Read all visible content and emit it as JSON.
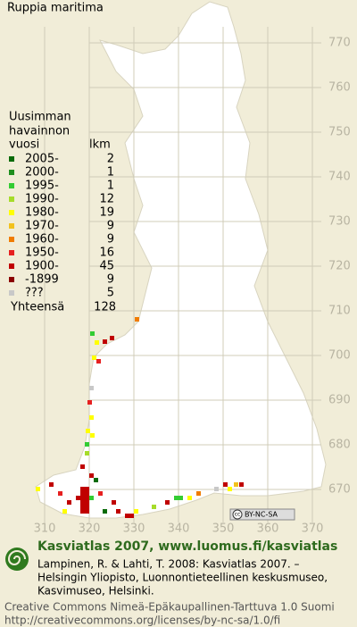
{
  "title": "Ruppia maritima",
  "legend": {
    "heading": [
      "Uusimman",
      "havainnon",
      "vuosi"
    ],
    "count_heading": "lkm",
    "rows": [
      {
        "label": "2005-",
        "count": 2,
        "color": "#0a6b0a"
      },
      {
        "label": "2000-",
        "count": 1,
        "color": "#1f8f1f"
      },
      {
        "label": "1995-",
        "count": 1,
        "color": "#33cc33"
      },
      {
        "label": "1990-",
        "count": 12,
        "color": "#a6dc2a"
      },
      {
        "label": "1980-",
        "count": 19,
        "color": "#ffff00"
      },
      {
        "label": "1970-",
        "count": 9,
        "color": "#f2c21e"
      },
      {
        "label": "1960-",
        "count": 9,
        "color": "#f07c00"
      },
      {
        "label": "1950-",
        "count": 16,
        "color": "#e62020"
      },
      {
        "label": "1900-",
        "count": 45,
        "color": "#c00000"
      },
      {
        "label": "-1899",
        "count": 9,
        "color": "#8b0000"
      },
      {
        "label": "???",
        "count": 5,
        "color": "#c8c8c8"
      }
    ],
    "total_label": "Yhteensä",
    "total": 128
  },
  "grid": {
    "y_labels": [
      770,
      760,
      750,
      740,
      730,
      720,
      710,
      700,
      690,
      680,
      670
    ],
    "x_labels": [
      310,
      320,
      330,
      340,
      350,
      360,
      370
    ]
  },
  "badge": {
    "symbol": "cc",
    "text": "BY-NC-SA"
  },
  "footer": {
    "site": "Kasviatlas 2007, www.luomus.fi/kasviatlas",
    "citation": [
      "Lampinen, R. & Lahti, T. 2008: Kasviatlas 2007. –",
      "Helsingin Yliopisto, Luonnontieteellinen keskusmuseo,",
      "Kasvimuseo, Helsinki."
    ],
    "license": [
      "Creative Commons Nimeä-Epäkaupallinen-Tarttuva 1.0 Suomi",
      "http://creativecommons.org/licenses/by-nc-sa/1.0/fi"
    ]
  }
}
